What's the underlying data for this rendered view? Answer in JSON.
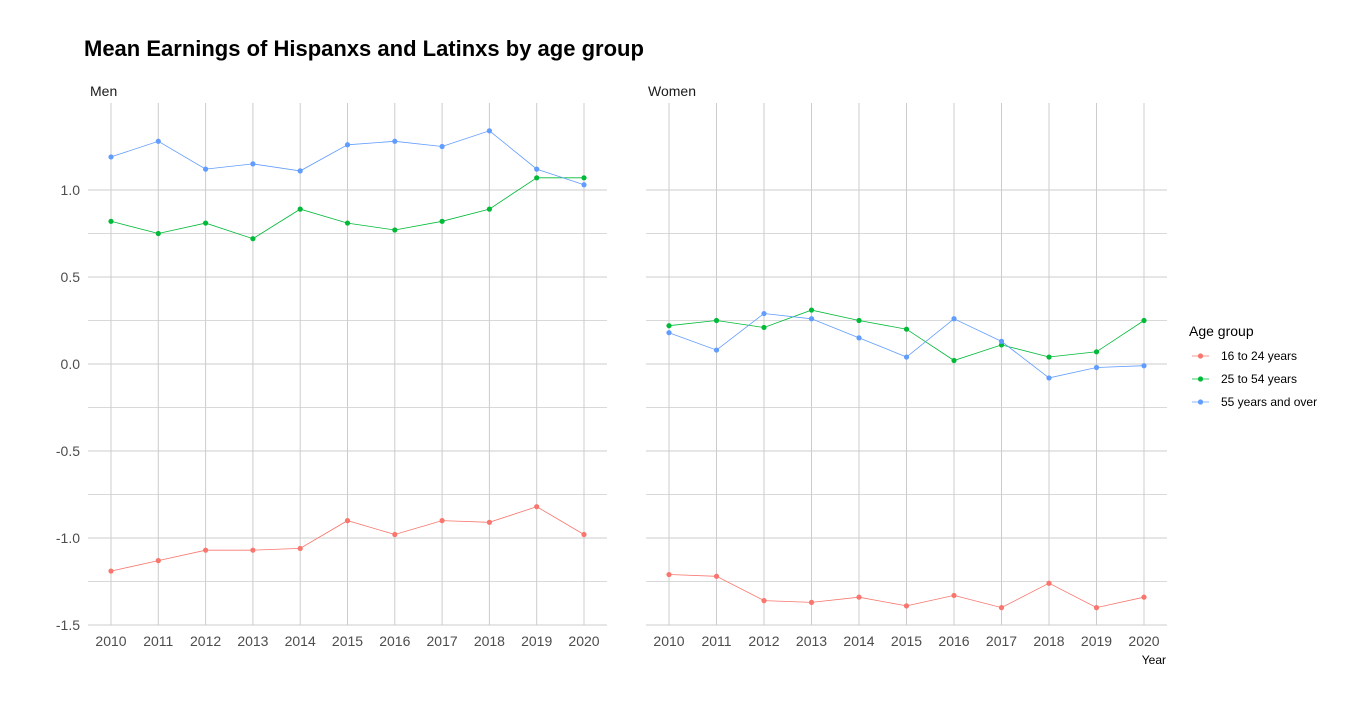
{
  "chart_data": {
    "type": "line",
    "title": "Mean Earnings of Hispanxs and Latinxs by age group",
    "xlabel": "Year",
    "ylabel": "",
    "x": [
      2010,
      2011,
      2012,
      2013,
      2014,
      2015,
      2016,
      2017,
      2018,
      2019,
      2020
    ],
    "ylim": [
      -1.5,
      1.5
    ],
    "yticks": [
      -1.5,
      -1.0,
      -0.5,
      0.0,
      0.5,
      1.0
    ],
    "ytick_labels": [
      "-1.5",
      "-1.0",
      "-0.5",
      "0.0",
      "0.5",
      "1.0"
    ],
    "grid": true,
    "legend": {
      "title": "Age group",
      "position": "right",
      "entries": [
        "16 to 24 years",
        "25 to 54 years",
        "55 years and over"
      ]
    },
    "colors": {
      "16 to 24 years": "#F8766D",
      "25 to 54 years": "#00BA38",
      "55 years and over": "#619CFF",
      "grid": "#cccccc"
    },
    "panels": [
      {
        "name": "Men",
        "series": [
          {
            "name": "16 to 24 years",
            "values": [
              -1.19,
              -1.13,
              -1.07,
              -1.07,
              -1.06,
              -0.9,
              -0.98,
              -0.9,
              -0.91,
              -0.82,
              -0.98
            ]
          },
          {
            "name": "25 to 54 years",
            "values": [
              0.82,
              0.75,
              0.81,
              0.72,
              0.89,
              0.81,
              0.77,
              0.82,
              0.89,
              1.07,
              1.07
            ]
          },
          {
            "name": "55 years and over",
            "values": [
              1.19,
              1.28,
              1.12,
              1.15,
              1.11,
              1.26,
              1.28,
              1.25,
              1.34,
              1.12,
              1.03
            ]
          }
        ]
      },
      {
        "name": "Women",
        "series": [
          {
            "name": "16 to 24 years",
            "values": [
              -1.21,
              -1.22,
              -1.36,
              -1.37,
              -1.34,
              -1.39,
              -1.33,
              -1.4,
              -1.26,
              -1.4,
              -1.34
            ]
          },
          {
            "name": "25 to 54 years",
            "values": [
              0.22,
              0.25,
              0.21,
              0.31,
              0.25,
              0.2,
              0.02,
              0.11,
              0.04,
              0.07,
              0.25
            ]
          },
          {
            "name": "55 years and over",
            "values": [
              0.18,
              0.08,
              0.29,
              0.26,
              0.15,
              0.04,
              0.26,
              0.13,
              -0.08,
              -0.02,
              -0.01
            ]
          }
        ]
      }
    ]
  }
}
